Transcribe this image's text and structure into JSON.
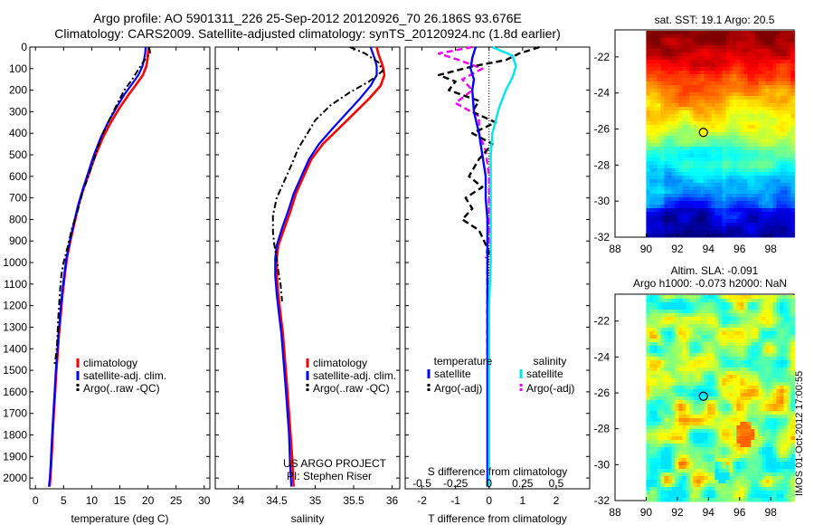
{
  "header": {
    "line1": "Argo profile: AO 5901311_226 25-Sep-2012 20120926_70 26.186S 93.676E",
    "line2": "Climatology: CARS2009. Satellite-adjusted climatology: synTS_20120924.nc (1.8d earlier)"
  },
  "timestamp": "IMOS 01-Oct-2012 17:00:55",
  "colors": {
    "climatology": "#ff0000",
    "satellite": "#0000ff",
    "argo": "#000000",
    "salinity_satellite": "#00e5ee",
    "salinity_argo": "#ee00ee"
  },
  "chart_data": [
    {
      "type": "line",
      "name": "temperature-profile",
      "xlabel": "temperature (deg C)",
      "ylabel": "",
      "xlim": [
        -1,
        31
      ],
      "ylim": [
        2050,
        0
      ],
      "xticks": [
        0,
        5,
        10,
        15,
        20,
        25,
        30
      ],
      "yticks": [
        0,
        100,
        200,
        300,
        400,
        500,
        600,
        700,
        800,
        900,
        1000,
        1100,
        1200,
        1300,
        1400,
        1500,
        1600,
        1700,
        1800,
        1900,
        2000
      ],
      "legend": [
        "climatology",
        "satellite-adj. clim.",
        "Argo(..raw -QC)"
      ],
      "legend_loc": "bottom-center",
      "series": [
        {
          "name": "climatology",
          "style": "solid",
          "x": [
            20.1,
            20.0,
            19.9,
            19.7,
            19.1,
            18.0,
            16.6,
            15.0,
            13.4,
            12.0,
            10.7,
            9.6,
            8.5,
            7.6,
            6.9,
            6.2,
            5.6,
            5.2,
            4.8,
            4.5,
            4.2,
            3.95,
            3.7,
            3.5,
            3.3,
            3.1,
            2.95,
            2.8,
            2.65,
            2.5
          ],
          "y": [
            0,
            30,
            60,
            90,
            130,
            170,
            220,
            280,
            350,
            420,
            500,
            580,
            660,
            740,
            820,
            900,
            980,
            1060,
            1150,
            1240,
            1330,
            1420,
            1510,
            1600,
            1690,
            1780,
            1860,
            1940,
            2000,
            2040
          ]
        },
        {
          "name": "satellite-adj. clim.",
          "style": "solid",
          "x": [
            19.6,
            19.5,
            19.3,
            19.0,
            18.3,
            17.2,
            15.8,
            14.4,
            12.9,
            11.6,
            10.4,
            9.4,
            8.4,
            7.5,
            6.8,
            6.1,
            5.5,
            5.1,
            4.7,
            4.4,
            4.1,
            3.85,
            3.6,
            3.4,
            3.2,
            3.0,
            2.85,
            2.7,
            2.55,
            2.4
          ],
          "y": [
            0,
            30,
            60,
            90,
            130,
            170,
            220,
            280,
            350,
            420,
            500,
            580,
            660,
            740,
            820,
            900,
            980,
            1060,
            1150,
            1240,
            1330,
            1420,
            1510,
            1600,
            1690,
            1780,
            1860,
            1940,
            2000,
            2040
          ]
        },
        {
          "name": "Argo(..raw -QC)",
          "style": "dashdot",
          "x": [
            20.2,
            20.4,
            19.4,
            18.4,
            17.2,
            15.8,
            14.6,
            13.3,
            12.0,
            11.0,
            10.3,
            9.4,
            8.3,
            7.5,
            6.5,
            5.8,
            5.0,
            4.6,
            4.4,
            4.2,
            4.0,
            3.9,
            3.8,
            3.6,
            3.4
          ],
          "y": [
            0,
            30,
            60,
            100,
            150,
            200,
            260,
            330,
            400,
            470,
            530,
            600,
            680,
            760,
            840,
            920,
            1000,
            1060,
            1120,
            1200,
            1280,
            1350,
            1400,
            1440,
            1470
          ]
        }
      ]
    },
    {
      "type": "line",
      "name": "salinity-profile",
      "xlabel": "salinity",
      "ylabel": "",
      "xlim": [
        33.7,
        36.1
      ],
      "ylim": [
        2050,
        0
      ],
      "xticks": [
        34,
        34.5,
        35,
        35.5,
        36
      ],
      "legend": [
        "climatology",
        "satellite-adj. clim.",
        "Argo(..raw -QC)"
      ],
      "legend_loc": "bottom-center",
      "annotations": [
        "US ARGO PROJECT",
        "PI: Stephen Riser"
      ],
      "series": [
        {
          "name": "climatology",
          "style": "solid",
          "x": [
            35.8,
            35.82,
            35.85,
            35.88,
            35.9,
            35.85,
            35.7,
            35.5,
            35.3,
            35.1,
            34.95,
            34.85,
            34.75,
            34.68,
            34.6,
            34.52,
            34.5,
            34.5,
            34.52,
            34.55,
            34.58,
            34.6,
            34.62,
            34.64,
            34.66,
            34.68,
            34.7,
            34.71,
            34.72
          ],
          "y": [
            0,
            30,
            60,
            90,
            130,
            180,
            240,
            310,
            380,
            450,
            520,
            600,
            680,
            760,
            840,
            920,
            980,
            1060,
            1150,
            1240,
            1330,
            1420,
            1510,
            1600,
            1700,
            1800,
            1900,
            1980,
            2040
          ]
        },
        {
          "name": "satellite-adj. clim.",
          "style": "solid",
          "x": [
            35.72,
            35.75,
            35.78,
            35.8,
            35.8,
            35.72,
            35.58,
            35.4,
            35.22,
            35.05,
            34.92,
            34.82,
            34.72,
            34.65,
            34.57,
            34.5,
            34.48,
            34.48,
            34.5,
            34.53,
            34.56,
            34.58,
            34.6,
            34.62,
            34.64,
            34.66,
            34.67,
            34.68,
            34.69
          ],
          "y": [
            0,
            30,
            60,
            90,
            130,
            180,
            240,
            310,
            380,
            450,
            520,
            600,
            680,
            760,
            840,
            920,
            980,
            1060,
            1150,
            1240,
            1330,
            1420,
            1510,
            1600,
            1700,
            1800,
            1900,
            1980,
            2040
          ]
        },
        {
          "name": "Argo(..raw -QC)",
          "style": "dashdot",
          "x": [
            35.45,
            35.65,
            35.82,
            35.88,
            35.7,
            35.45,
            35.2,
            35.0,
            34.9,
            34.78,
            34.7,
            34.6,
            34.5,
            34.45,
            34.45,
            34.47,
            34.5,
            34.52,
            34.55,
            34.57
          ],
          "y": [
            0,
            30,
            70,
            110,
            160,
            210,
            270,
            340,
            400,
            470,
            540,
            620,
            700,
            780,
            860,
            920,
            980,
            1040,
            1100,
            1180
          ]
        }
      ]
    },
    {
      "type": "line",
      "name": "difference-profile",
      "xlabel": "T difference from climatology",
      "xlabel2": "S difference from climatology",
      "ylabel": "",
      "xlim": [
        -2.5,
        3.0
      ],
      "ylim": [
        2050,
        0
      ],
      "xticks": [
        -2,
        -1,
        0,
        1,
        2
      ],
      "xticks_s": [
        "-0.5",
        "-0.25",
        "0",
        "0.25",
        "0.5"
      ],
      "xticks_s_pos": [
        -2,
        -1,
        0,
        1,
        2
      ],
      "legend_temperature": "temperature",
      "legend_salinity": "salinity",
      "legend": [
        "satellite",
        "Argo(-adj)",
        "satellite",
        "Argo(-adj)"
      ],
      "legend_loc": "bottom-center",
      "series": [
        {
          "name": "satellite",
          "group": "temperature",
          "style": "solid",
          "x": [
            -0.4,
            -0.5,
            -0.55,
            -0.45,
            -0.5,
            -0.45,
            -0.3,
            -0.2,
            -0.1,
            -0.1,
            -0.05,
            -0.05,
            -0.05,
            -0.05,
            -0.05,
            -0.05,
            -0.05,
            -0.05,
            -0.05,
            -0.05,
            -0.05
          ],
          "y": [
            0,
            50,
            100,
            150,
            200,
            300,
            400,
            500,
            600,
            700,
            800,
            900,
            1000,
            1200,
            1400,
            1600,
            1700,
            1800,
            1900,
            2000,
            2040
          ]
        },
        {
          "name": "Argo(-adj)",
          "group": "temperature",
          "style": "dashed",
          "x": [
            1.5,
            0.9,
            0.5,
            -0.5,
            -1.5,
            -1.0,
            -1.2,
            -0.3,
            -0.5,
            0.2,
            -0.5,
            0.1,
            -0.3,
            -0.6,
            -0.2,
            -0.7,
            -0.5,
            -0.8,
            -0.3,
            -0.15,
            0.0,
            -0.05,
            -0.05,
            -0.05,
            -0.05,
            -0.05
          ],
          "y": [
            0,
            30,
            60,
            90,
            130,
            160,
            200,
            250,
            300,
            350,
            400,
            450,
            520,
            600,
            650,
            700,
            750,
            800,
            850,
            900,
            950,
            1000,
            1100,
            1200,
            1300,
            1450
          ]
        },
        {
          "name": "satellite",
          "group": "salinity",
          "style": "solid",
          "x": [
            0.1,
            0.7,
            0.8,
            0.7,
            0.5,
            0.3,
            0.1,
            0.05,
            0.05,
            0.05,
            0.05,
            0.05,
            0.05,
            0.0,
            0.0,
            0.0,
            0.0,
            0.0
          ],
          "y": [
            0,
            40,
            90,
            140,
            200,
            280,
            400,
            500,
            600,
            700,
            800,
            900,
            1000,
            1200,
            1500,
            1800,
            2000,
            2040
          ]
        },
        {
          "name": "Argo(-adj)",
          "group": "salinity",
          "style": "dashed",
          "x": [
            -0.5,
            -1.5,
            -0.9,
            -0.2,
            -0.8,
            -0.5,
            -1.0,
            -0.3,
            -0.3,
            -0.1,
            0.0,
            0.0,
            0.0,
            -0.1
          ],
          "y": [
            0,
            30,
            60,
            100,
            150,
            200,
            260,
            320,
            400,
            480,
            600,
            800,
            900,
            980
          ]
        }
      ]
    },
    {
      "type": "heatmap",
      "name": "sst-map",
      "title": "sat. SST: 19.1 Argo: 20.5",
      "xlim": [
        88,
        99.5
      ],
      "ylim": [
        -32,
        -20.5
      ],
      "xticks": [
        88,
        90,
        92,
        94,
        96,
        98
      ],
      "yticks": [
        -32,
        -30,
        -28,
        -26,
        -24,
        -22
      ],
      "data_extent_x": [
        90,
        99.5
      ],
      "marker": {
        "lon": 93.676,
        "lat": -26.186,
        "fill": "#ffff00"
      },
      "colors": {
        "warm_north": "#b03000",
        "mid": "#ffd000",
        "cool_south": "#00a0ff",
        "coldest": "#0020c0"
      }
    },
    {
      "type": "heatmap",
      "name": "sla-map",
      "title_line1": "Altim. SLA: -0.091",
      "title_line2": "Argo h1000: -0.073 h2000: NaN",
      "xlim": [
        88,
        99.5
      ],
      "ylim": [
        -32,
        -20.5
      ],
      "xticks": [
        88,
        90,
        92,
        94,
        96,
        98
      ],
      "yticks": [
        -32,
        -30,
        -28,
        -26,
        -24,
        -22
      ],
      "data_extent_x": [
        90,
        99.5
      ],
      "marker": {
        "lon": 93.676,
        "lat": -26.186,
        "fill": "none"
      }
    }
  ]
}
